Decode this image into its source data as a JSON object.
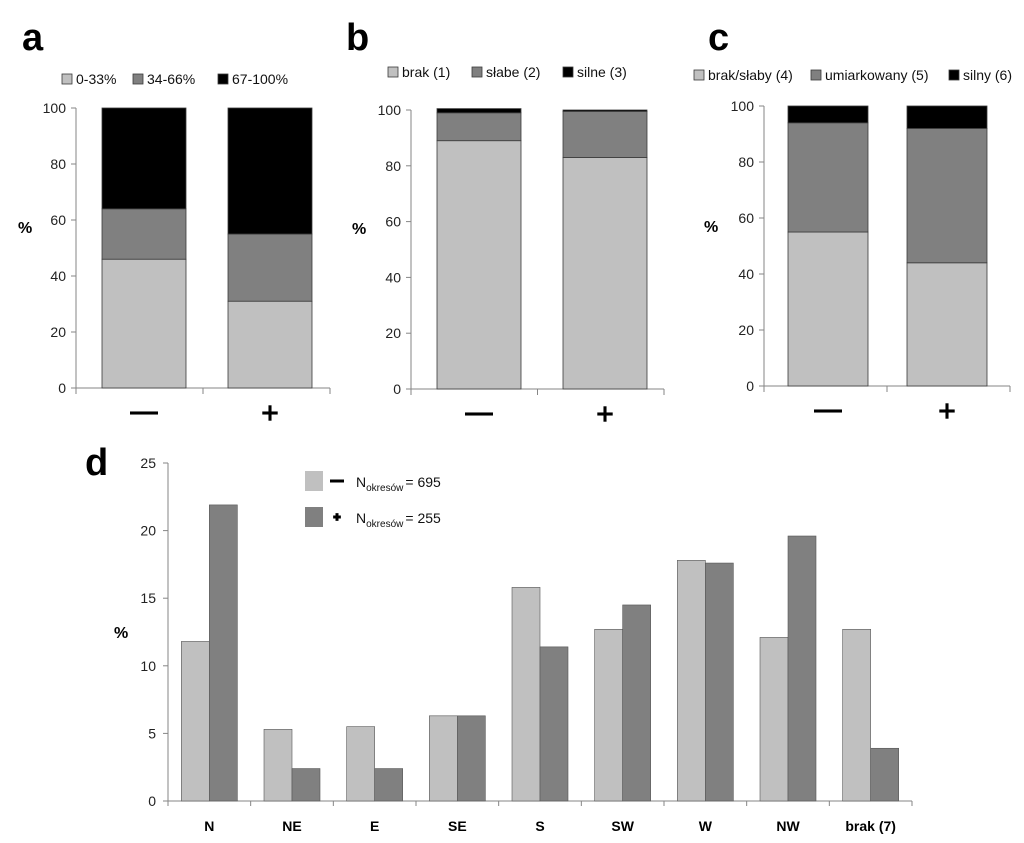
{
  "chart_data": [
    {
      "panel": "a",
      "type": "bar",
      "stacked": true,
      "categories": [
        "—",
        "+"
      ],
      "series": [
        {
          "name": "0-33%",
          "color": "#c0c0c0",
          "values": [
            46,
            31
          ]
        },
        {
          "name": "34-66%",
          "color": "#808080",
          "values": [
            18,
            24
          ]
        },
        {
          "name": "67-100%",
          "color": "#000000",
          "values": [
            36,
            45
          ]
        }
      ],
      "ylabel": "%",
      "ylim": [
        0,
        100
      ],
      "yticks": [
        0,
        20,
        40,
        60,
        80,
        100
      ],
      "legend": "top"
    },
    {
      "panel": "b",
      "type": "bar",
      "stacked": true,
      "categories": [
        "—",
        "+"
      ],
      "series": [
        {
          "name": "brak (1)",
          "color": "#c0c0c0",
          "values": [
            89,
            83
          ]
        },
        {
          "name": "słabe (2)",
          "color": "#808080",
          "values": [
            10,
            16.5
          ]
        },
        {
          "name": "silne  (3)",
          "color": "#000000",
          "values": [
            1.5,
            0.5
          ]
        }
      ],
      "ylabel": "%",
      "ylim": [
        0,
        100
      ],
      "yticks": [
        0,
        20,
        40,
        60,
        80,
        100
      ],
      "legend": "top"
    },
    {
      "panel": "c",
      "type": "bar",
      "stacked": true,
      "categories": [
        "—",
        "+"
      ],
      "series": [
        {
          "name": "brak/słaby (4)",
          "color": "#c0c0c0",
          "values": [
            55,
            44
          ]
        },
        {
          "name": "umiarkowany (5)",
          "color": "#808080",
          "values": [
            39,
            48
          ]
        },
        {
          "name": "silny (6)",
          "color": "#000000",
          "values": [
            6,
            8
          ]
        }
      ],
      "ylabel": "%",
      "ylim": [
        0,
        100
      ],
      "yticks": [
        0,
        20,
        40,
        60,
        80,
        100
      ],
      "legend": "top"
    },
    {
      "panel": "d",
      "type": "bar",
      "categories": [
        "N",
        "NE",
        "E",
        "SE",
        "S",
        "SW",
        "W",
        "NW",
        "brak (7)"
      ],
      "series": [
        {
          "name": "—",
          "legend_label_base": "N",
          "legend_label_sub": "okresów",
          "legend_label_value": "= 695",
          "color": "#c0c0c0",
          "values": [
            11.8,
            5.3,
            5.5,
            6.3,
            15.8,
            12.7,
            17.8,
            12.1,
            12.7
          ]
        },
        {
          "name": "+",
          "legend_label_base": "N",
          "legend_label_sub": "okresów",
          "legend_label_value": "= 255",
          "color": "#808080",
          "values": [
            21.9,
            2.4,
            2.4,
            6.3,
            11.4,
            14.5,
            17.6,
            19.6,
            3.9
          ]
        }
      ],
      "ylabel": "%",
      "ylim": [
        0,
        25
      ],
      "yticks": [
        0,
        5,
        10,
        15,
        20,
        25
      ],
      "legend": "top-left"
    }
  ]
}
